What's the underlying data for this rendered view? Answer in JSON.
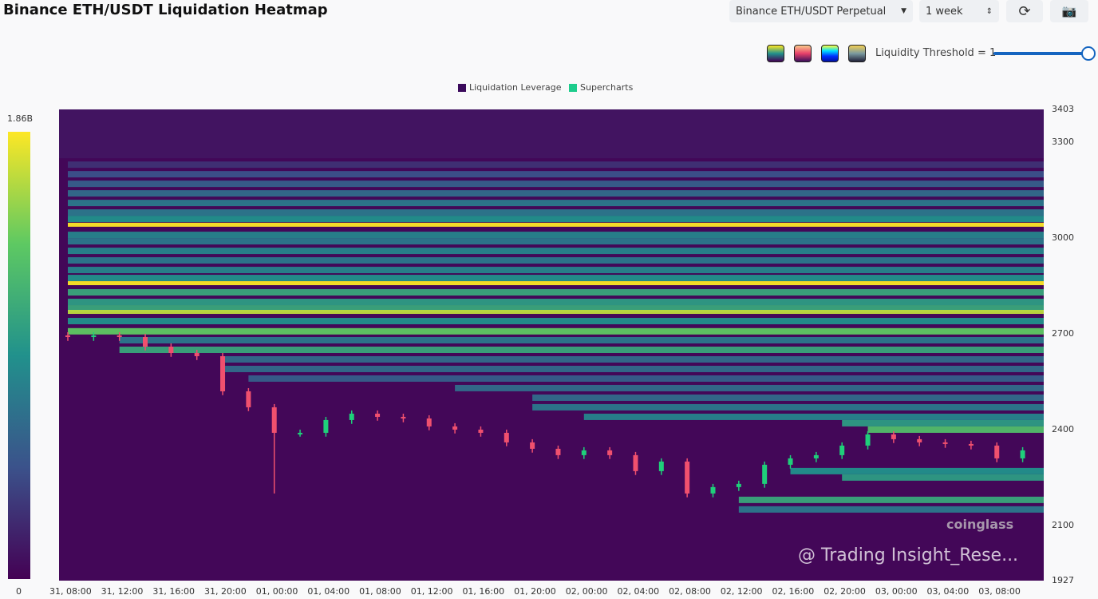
{
  "header": {
    "title": "Binance ETH/USDT Liquidation Heatmap",
    "pair_select": "Binance ETH/USDT Perpetual",
    "range_select": "1 week",
    "refresh_icon": "refresh-icon",
    "camera_icon": "camera-icon"
  },
  "controls": {
    "palettes": [
      "viridis",
      "magma",
      "jet",
      "cividis"
    ],
    "threshold_label": "Liquidity Threshold = 1",
    "threshold_value": 1
  },
  "watermarks": {
    "brand": "coinglass",
    "author": "@ Trading Insight_Rese..."
  },
  "chart_data": {
    "type": "heatmap",
    "legend": [
      {
        "name": "Liquidation Leverage",
        "color": "#3b0a5c"
      },
      {
        "name": "Supercharts",
        "color": "#1dcc8c"
      }
    ],
    "legend_placement": "top-center",
    "colorbar": {
      "min_label": "0",
      "max_label": "1.86B"
    },
    "y_ticks": [
      "3403",
      "3300",
      "3000",
      "2700",
      "2400",
      "2100",
      "1927"
    ],
    "y_tick_values": [
      3403,
      3300,
      3000,
      2700,
      2400,
      2100,
      1927
    ],
    "ylim": [
      1927,
      3403
    ],
    "x_ticks": [
      "31, 08:00",
      "31, 12:00",
      "31, 16:00",
      "31, 20:00",
      "01, 00:00",
      "01, 04:00",
      "01, 08:00",
      "01, 12:00",
      "01, 16:00",
      "01, 20:00",
      "02, 00:00",
      "02, 04:00",
      "02, 08:00",
      "02, 12:00",
      "02, 16:00",
      "02, 20:00",
      "03, 00:00",
      "03, 04:00",
      "03, 08:00"
    ],
    "candle_interval_hours": 2,
    "closes": [
      2690,
      2695,
      2690,
      2660,
      2640,
      2630,
      2520,
      2470,
      2390,
      2390,
      2430,
      2450,
      2440,
      2435,
      2410,
      2400,
      2390,
      2360,
      2340,
      2320,
      2335,
      2320,
      2270,
      2300,
      2200,
      2220,
      2230,
      2290,
      2310,
      2320,
      2350,
      2385,
      2370,
      2360,
      2355,
      2350,
      2310,
      2335
    ],
    "wick_low": {
      "hour": 16,
      "price": 2200
    },
    "liquidation_bands": [
      {
        "price": 3230,
        "intensity": 0.15,
        "from_hour": 0
      },
      {
        "price": 3200,
        "intensity": 0.25,
        "from_hour": 0
      },
      {
        "price": 3170,
        "intensity": 0.3,
        "from_hour": 0
      },
      {
        "price": 3140,
        "intensity": 0.35,
        "from_hour": 0
      },
      {
        "price": 3110,
        "intensity": 0.4,
        "from_hour": 0
      },
      {
        "price": 3080,
        "intensity": 0.4,
        "from_hour": 0
      },
      {
        "price": 3060,
        "intensity": 0.5,
        "from_hour": 0
      },
      {
        "price": 3038,
        "intensity": 1.0,
        "from_hour": 0
      },
      {
        "price": 3010,
        "intensity": 0.45,
        "from_hour": 0
      },
      {
        "price": 2990,
        "intensity": 0.4,
        "from_hour": 0
      },
      {
        "price": 2960,
        "intensity": 0.45,
        "from_hour": 0
      },
      {
        "price": 2930,
        "intensity": 0.4,
        "from_hour": 0
      },
      {
        "price": 2900,
        "intensity": 0.45,
        "from_hour": 0
      },
      {
        "price": 2875,
        "intensity": 0.5,
        "from_hour": 0
      },
      {
        "price": 2855,
        "intensity": 1.0,
        "from_hour": 0
      },
      {
        "price": 2830,
        "intensity": 0.6,
        "from_hour": 0
      },
      {
        "price": 2800,
        "intensity": 0.55,
        "from_hour": 0
      },
      {
        "price": 2780,
        "intensity": 0.6,
        "from_hour": 0
      },
      {
        "price": 2765,
        "intensity": 0.9,
        "from_hour": 0
      },
      {
        "price": 2740,
        "intensity": 0.5,
        "from_hour": 0
      },
      {
        "price": 2708,
        "intensity": 0.75,
        "from_hour": 0
      },
      {
        "price": 2680,
        "intensity": 0.4,
        "from_hour": 4
      },
      {
        "price": 2650,
        "intensity": 0.6,
        "from_hour": 4
      },
      {
        "price": 2620,
        "intensity": 0.35,
        "from_hour": 12
      },
      {
        "price": 2590,
        "intensity": 0.35,
        "from_hour": 12
      },
      {
        "price": 2560,
        "intensity": 0.3,
        "from_hour": 14
      },
      {
        "price": 2530,
        "intensity": 0.35,
        "from_hour": 30
      },
      {
        "price": 2500,
        "intensity": 0.35,
        "from_hour": 36
      },
      {
        "price": 2470,
        "intensity": 0.4,
        "from_hour": 36
      },
      {
        "price": 2440,
        "intensity": 0.45,
        "from_hour": 40
      },
      {
        "price": 2420,
        "intensity": 0.55,
        "from_hour": 60
      },
      {
        "price": 2400,
        "intensity": 0.7,
        "from_hour": 62
      },
      {
        "price": 2270,
        "intensity": 0.5,
        "from_hour": 56
      },
      {
        "price": 2250,
        "intensity": 0.55,
        "from_hour": 60
      },
      {
        "price": 2180,
        "intensity": 0.6,
        "from_hour": 52
      },
      {
        "price": 2150,
        "intensity": 0.4,
        "from_hour": 52
      }
    ]
  }
}
